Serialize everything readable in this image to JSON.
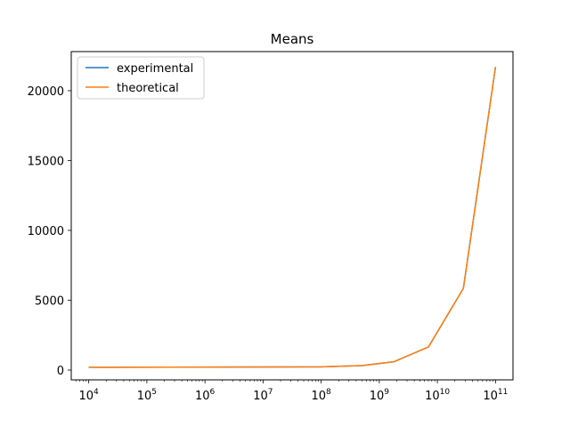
{
  "chart_data": {
    "type": "line",
    "title": "Means",
    "xlabel": "",
    "ylabel": "",
    "xscale": "log",
    "xlim": [
      5000,
      200000000000
    ],
    "ylim": [
      -700,
      22800
    ],
    "x_ticks": [
      {
        "value": 10000,
        "base": "10",
        "exp": "4"
      },
      {
        "value": 100000,
        "base": "10",
        "exp": "5"
      },
      {
        "value": 1000000,
        "base": "10",
        "exp": "6"
      },
      {
        "value": 10000000,
        "base": "10",
        "exp": "7"
      },
      {
        "value": 100000000,
        "base": "10",
        "exp": "8"
      },
      {
        "value": 1000000000,
        "base": "10",
        "exp": "9"
      },
      {
        "value": 10000000000,
        "base": "10",
        "exp": "10"
      },
      {
        "value": 100000000000,
        "base": "10",
        "exp": "11"
      }
    ],
    "y_ticks": [
      {
        "value": 0,
        "label": "0"
      },
      {
        "value": 5000,
        "label": "5000"
      },
      {
        "value": 10000,
        "label": "10000"
      },
      {
        "value": 15000,
        "label": "15000"
      },
      {
        "value": 20000,
        "label": "20000"
      }
    ],
    "grid": false,
    "legend_position": "top-left",
    "series": [
      {
        "name": "experimental",
        "color": "#1f77b4",
        "x": [
          10000,
          100000000,
          500000000,
          1800000000,
          7000000000,
          28000000000,
          100000000000
        ],
        "y": [
          200,
          230,
          320,
          600,
          1650,
          5850,
          21700
        ]
      },
      {
        "name": "theoretical",
        "color": "#ff7f0e",
        "x": [
          10000,
          100000000,
          500000000,
          1800000000,
          7000000000,
          28000000000,
          100000000000
        ],
        "y": [
          200,
          230,
          320,
          600,
          1650,
          5850,
          21700
        ]
      }
    ]
  }
}
